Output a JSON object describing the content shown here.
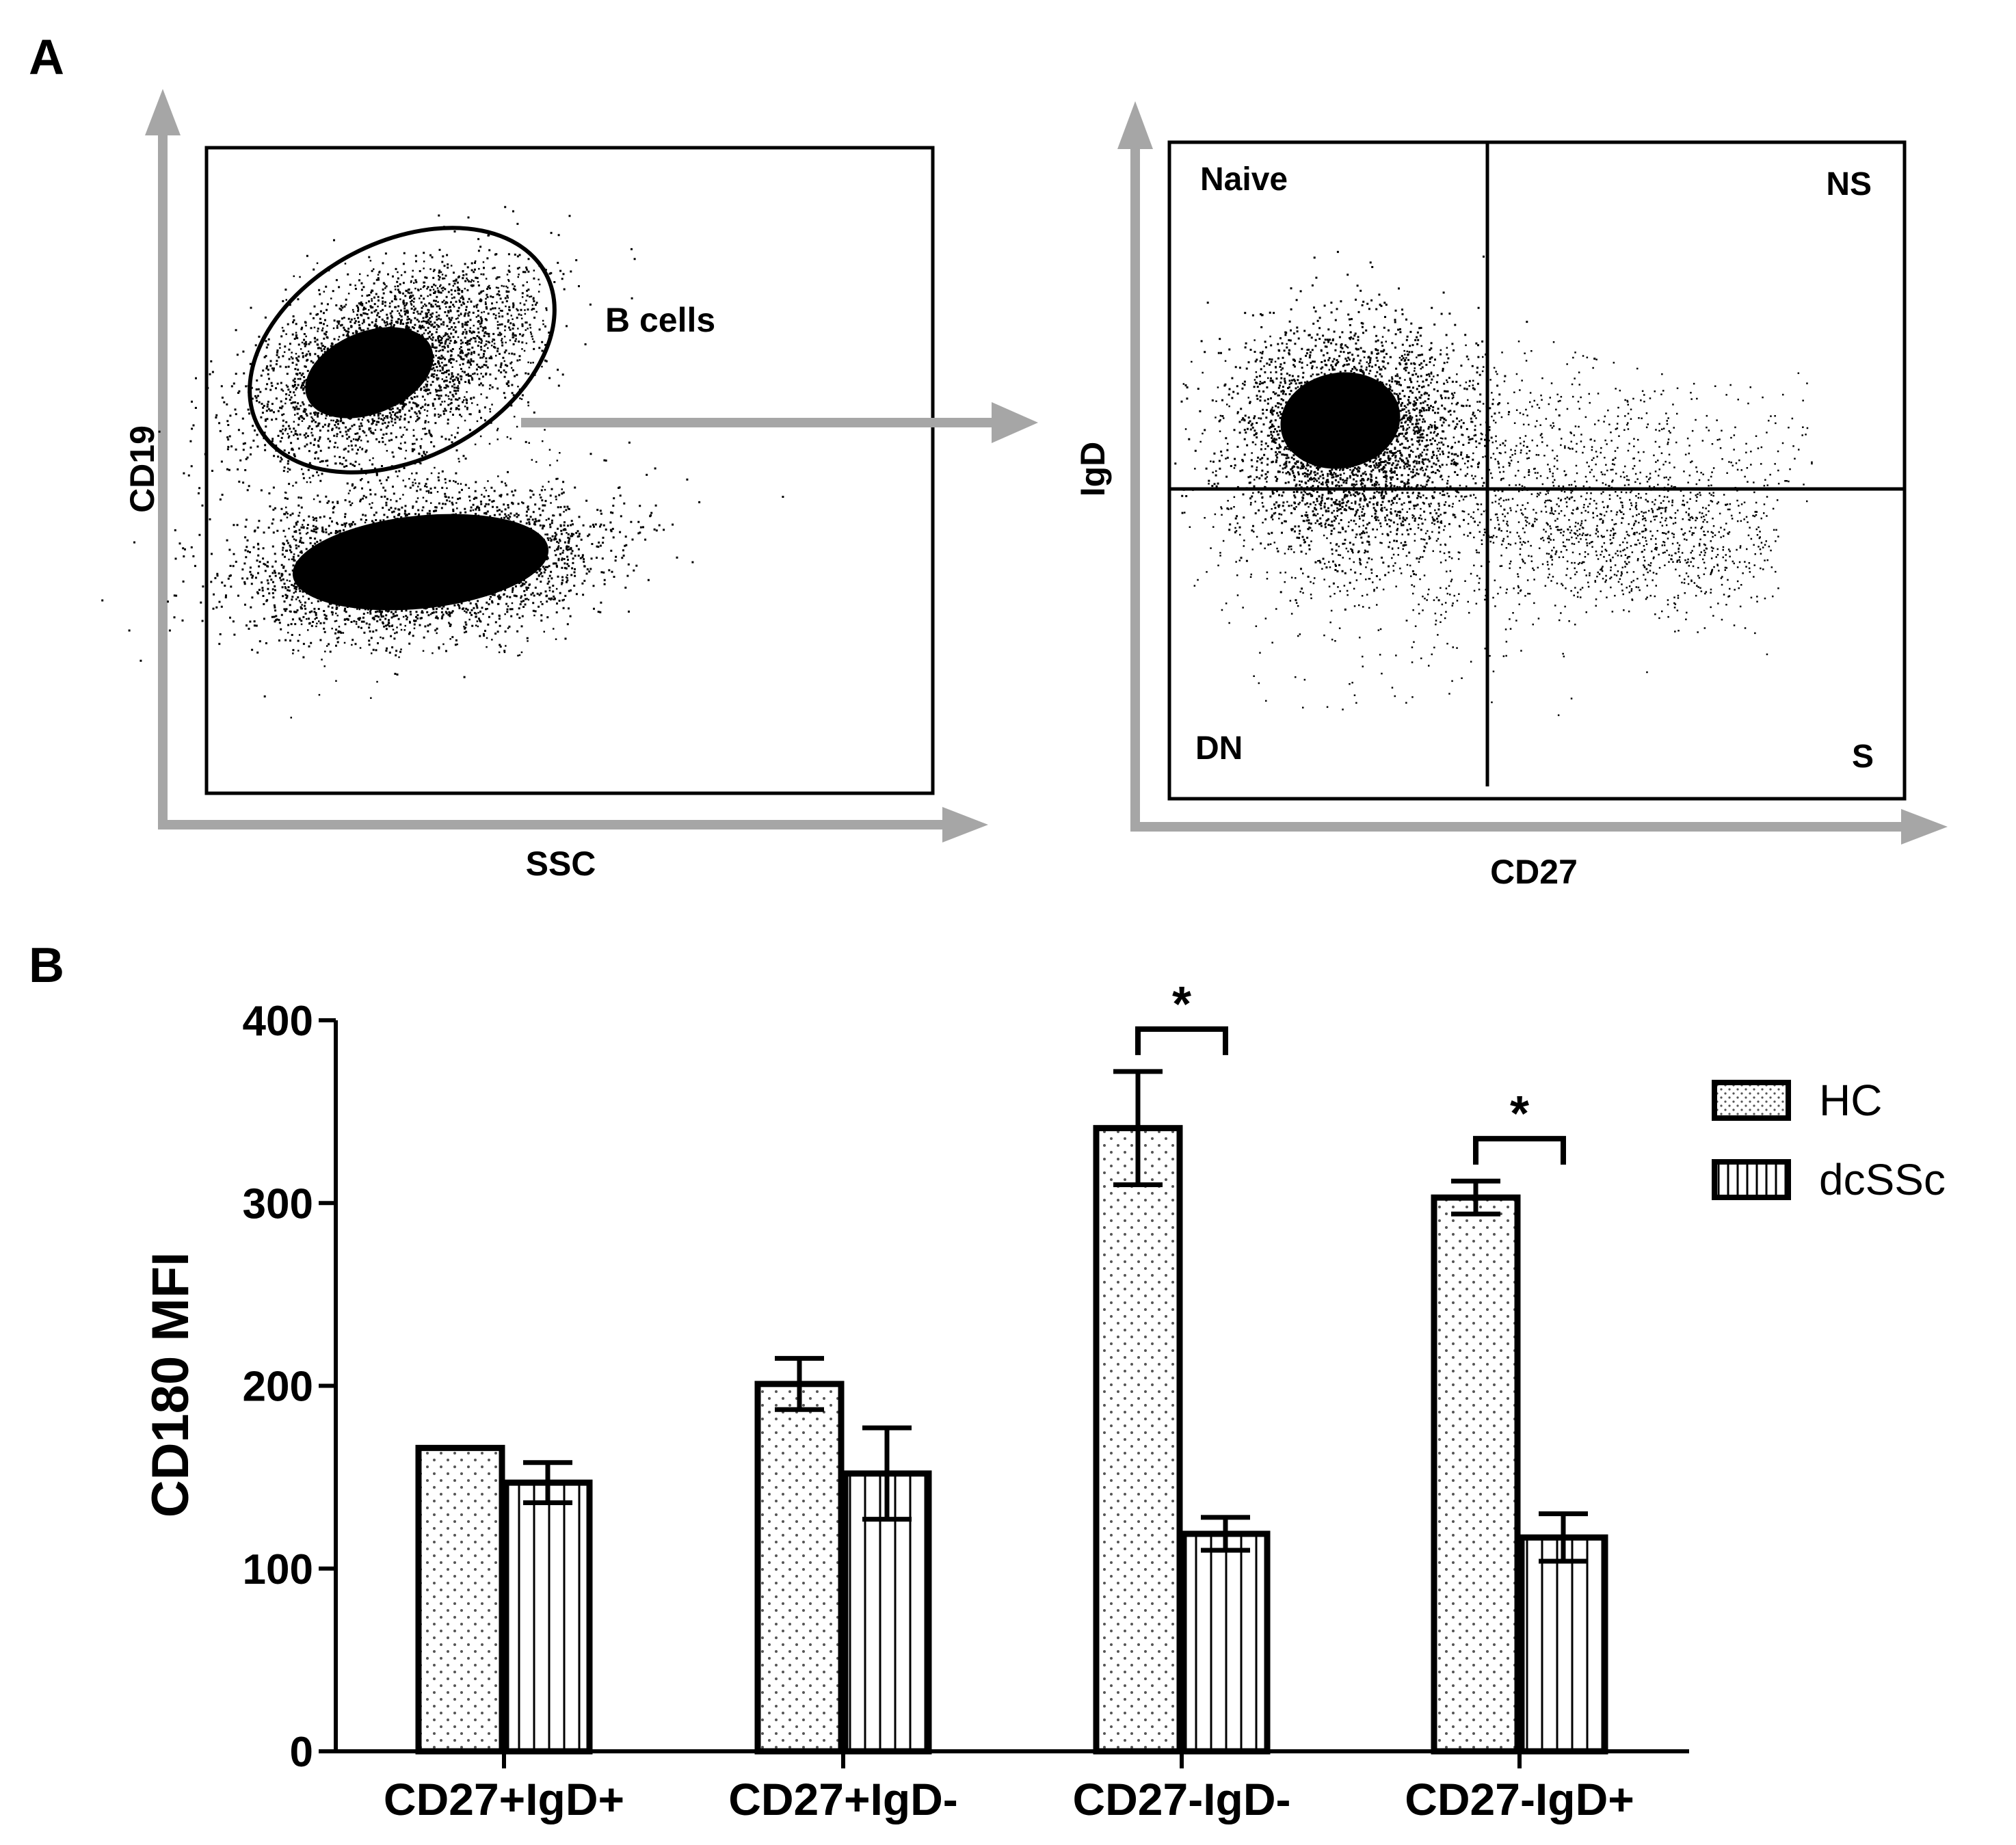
{
  "panel_a": {
    "letter": "A",
    "left_plot": {
      "x_label": "SSC",
      "y_label": "CD19",
      "gate_label": "B cells"
    },
    "right_plot": {
      "x_label": "CD27",
      "y_label": "IgD",
      "quadrants": {
        "top_left": "Naive",
        "top_right": "NS",
        "bottom_left": "DN",
        "bottom_right": "S"
      }
    }
  },
  "panel_b": {
    "letter": "B"
  },
  "colors": {
    "axis_arrow": "#a6a6a6",
    "ink": "#000000",
    "bar_fill": "#ffffff"
  },
  "chart_data": {
    "type": "bar",
    "ylabel": "CD180 MFI",
    "xlabel": "",
    "ylim": [
      0,
      400
    ],
    "yticks": [
      0,
      100,
      200,
      300,
      400
    ],
    "categories": [
      "CD27+IgD+",
      "CD27+IgD-",
      "CD27-IgD-",
      "CD27-IgD+"
    ],
    "series": [
      {
        "name": "HC",
        "pattern": "dots",
        "values": [
          166,
          201,
          341,
          303
        ],
        "errors": [
          0,
          14,
          31,
          9
        ]
      },
      {
        "name": "dcSSc",
        "pattern": "vertical-lines",
        "values": [
          147,
          152,
          119,
          117
        ],
        "errors": [
          11,
          25,
          9,
          13
        ]
      }
    ],
    "significance": [
      {
        "category": "CD27-IgD-",
        "label": "*"
      },
      {
        "category": "CD27-IgD+",
        "label": "*"
      }
    ],
    "legend_position": "top-right"
  }
}
